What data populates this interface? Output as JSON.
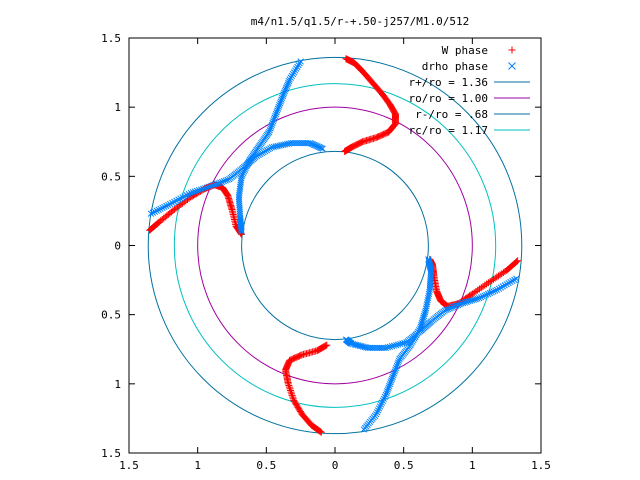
{
  "chart_data": {
    "type": "scatter",
    "title": "m4/n1.5/q1.5/r-+.50-j257/M1.0/512",
    "xlabel": "",
    "ylabel": "",
    "xlim": [
      -1.5,
      1.5
    ],
    "ylim": [
      -1.5,
      1.5
    ],
    "x_ticks": [
      -1.5,
      -1,
      -0.5,
      0,
      0.5,
      1,
      1.5
    ],
    "y_ticks": [
      -1.5,
      -1,
      -0.5,
      0,
      0.5,
      1,
      1.5
    ],
    "x_tick_labels": [
      "1.5",
      "1",
      "0.5",
      "0",
      "0.5",
      "1",
      "1.5"
    ],
    "y_tick_labels": [
      "1.5",
      "1",
      "0.5",
      "0",
      "0.5",
      "1",
      "1.5"
    ],
    "grid": false,
    "legend_position": "top-right",
    "series": [
      {
        "name": "W phase",
        "marker": "+",
        "color": "#ff0000",
        "points": [
          [
            0.08,
            1.35
          ],
          [
            0.14,
            1.32
          ],
          [
            0.2,
            1.26
          ],
          [
            0.27,
            1.18
          ],
          [
            0.34,
            1.1
          ],
          [
            0.4,
            1.02
          ],
          [
            0.44,
            0.95
          ],
          [
            0.44,
            0.88
          ],
          [
            0.39,
            0.82
          ],
          [
            0.3,
            0.78
          ],
          [
            0.2,
            0.75
          ],
          [
            0.12,
            0.71
          ],
          [
            0.07,
            0.68
          ],
          [
            1.33,
            -0.11
          ],
          [
            1.25,
            -0.18
          ],
          [
            1.13,
            -0.26
          ],
          [
            1.0,
            -0.35
          ],
          [
            0.9,
            -0.42
          ],
          [
            0.82,
            -0.44
          ],
          [
            0.77,
            -0.4
          ],
          [
            0.74,
            -0.33
          ],
          [
            0.72,
            -0.22
          ],
          [
            0.71,
            -0.14
          ],
          [
            0.69,
            -0.1
          ],
          [
            -0.1,
            -1.35
          ],
          [
            -0.17,
            -1.3
          ],
          [
            -0.24,
            -1.22
          ],
          [
            -0.3,
            -1.12
          ],
          [
            -0.34,
            -1.0
          ],
          [
            -0.36,
            -0.9
          ],
          [
            -0.33,
            -0.83
          ],
          [
            -0.24,
            -0.79
          ],
          [
            -0.13,
            -0.76
          ],
          [
            -0.06,
            -0.72
          ],
          [
            -1.35,
            0.11
          ],
          [
            -1.28,
            0.17
          ],
          [
            -1.17,
            0.26
          ],
          [
            -1.05,
            0.35
          ],
          [
            -0.95,
            0.41
          ],
          [
            -0.88,
            0.44
          ],
          [
            -0.82,
            0.42
          ],
          [
            -0.78,
            0.36
          ],
          [
            -0.75,
            0.26
          ],
          [
            -0.72,
            0.14
          ],
          [
            -0.68,
            0.08
          ]
        ]
      },
      {
        "name": "drho phase",
        "marker": "x",
        "color": "#0080ff",
        "points": [
          [
            -0.25,
            1.33
          ],
          [
            -0.33,
            1.2
          ],
          [
            -0.38,
            1.08
          ],
          [
            -0.43,
            0.95
          ],
          [
            -0.48,
            0.82
          ],
          [
            -0.55,
            0.72
          ],
          [
            -0.62,
            0.62
          ],
          [
            -0.68,
            0.5
          ],
          [
            -0.7,
            0.35
          ],
          [
            -0.69,
            0.2
          ],
          [
            -0.68,
            0.1
          ],
          [
            1.32,
            -0.24
          ],
          [
            1.18,
            -0.32
          ],
          [
            1.05,
            -0.38
          ],
          [
            0.92,
            -0.42
          ],
          [
            0.8,
            -0.47
          ],
          [
            0.7,
            -0.55
          ],
          [
            0.62,
            -0.62
          ],
          [
            0.52,
            -0.7
          ],
          [
            0.37,
            -0.74
          ],
          [
            0.24,
            -0.74
          ],
          [
            0.12,
            -0.71
          ],
          [
            0.08,
            -0.68
          ],
          [
            0.21,
            -1.33
          ],
          [
            0.3,
            -1.22
          ],
          [
            0.37,
            -1.08
          ],
          [
            0.42,
            -0.95
          ],
          [
            0.47,
            -0.82
          ],
          [
            0.55,
            -0.72
          ],
          [
            0.62,
            -0.6
          ],
          [
            0.66,
            -0.47
          ],
          [
            0.69,
            -0.32
          ],
          [
            0.7,
            -0.18
          ],
          [
            0.68,
            -0.1
          ],
          [
            -1.34,
            0.23
          ],
          [
            -1.2,
            0.3
          ],
          [
            -1.05,
            0.38
          ],
          [
            -0.9,
            0.43
          ],
          [
            -0.77,
            0.48
          ],
          [
            -0.67,
            0.56
          ],
          [
            -0.58,
            0.64
          ],
          [
            -0.46,
            0.71
          ],
          [
            -0.32,
            0.74
          ],
          [
            -0.18,
            0.74
          ],
          [
            -0.09,
            0.7
          ]
        ]
      }
    ],
    "circles": [
      {
        "label": "r+/ro = 1.36",
        "r": 1.36,
        "color": "#0070a0"
      },
      {
        "label": "ro/ro = 1.00",
        "r": 1.0,
        "color": "#a000a0"
      },
      {
        "label": "r-/ro = .68",
        "r": 0.68,
        "color": "#0070a0"
      },
      {
        "label": "rc/ro = 1.17",
        "r": 1.17,
        "color": "#00c0c0"
      }
    ]
  }
}
